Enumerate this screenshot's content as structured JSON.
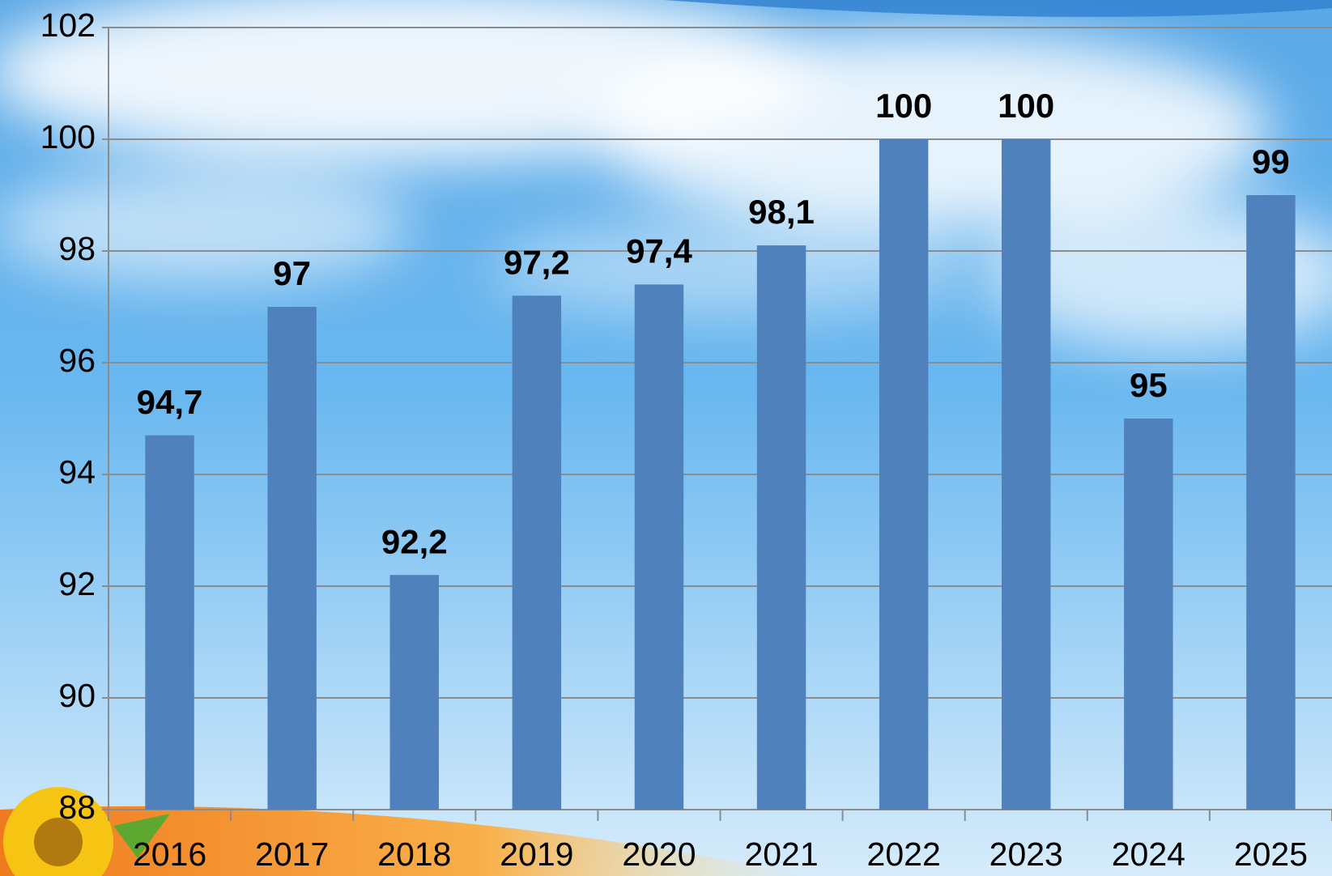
{
  "chart_data": {
    "type": "bar",
    "categories": [
      "2016",
      "2017",
      "2018",
      "2019",
      "2020",
      "2021",
      "2022",
      "2023",
      "2024",
      "2025"
    ],
    "values": [
      94.7,
      97,
      92.2,
      97.2,
      97.4,
      98.1,
      100,
      100,
      95,
      99
    ],
    "value_labels": [
      "94,7",
      "97",
      "92,2",
      "97,2",
      "97,4",
      "98,1",
      "100",
      "100",
      "95",
      "99"
    ],
    "color": "#4f81bd",
    "ylim": [
      88,
      102
    ],
    "yticks": [
      88,
      90,
      92,
      94,
      96,
      98,
      100,
      102
    ],
    "grid": true
  }
}
